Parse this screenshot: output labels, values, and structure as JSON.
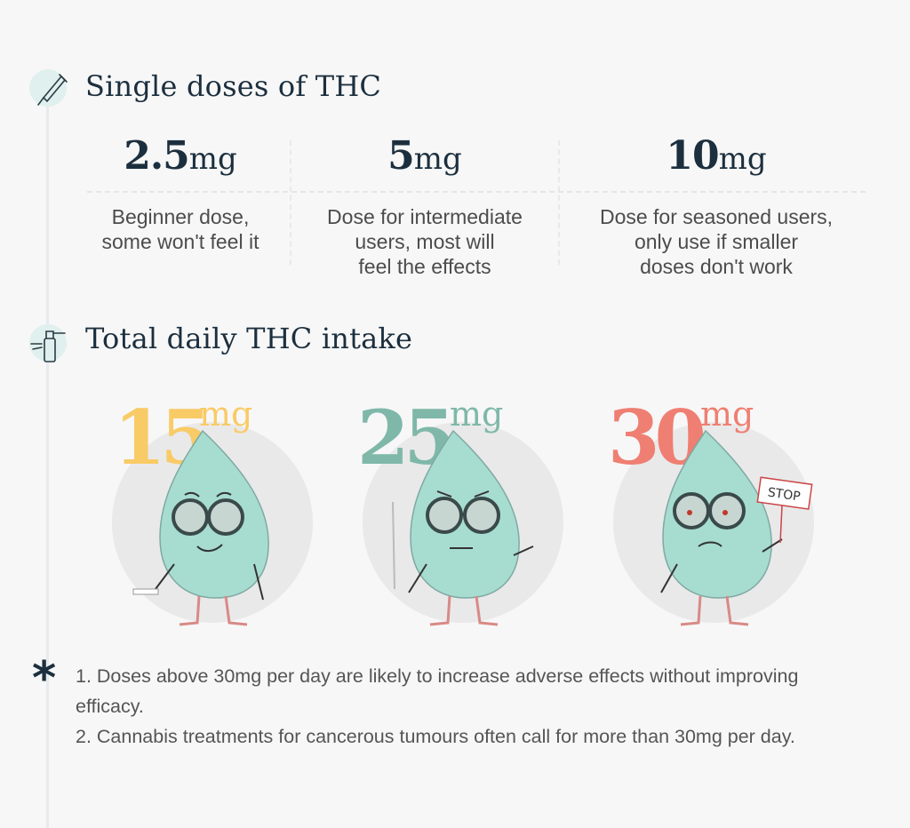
{
  "colors": {
    "heading": "#1c2f3e",
    "mint": "#a7dcd1",
    "yellow": "#f9cb66",
    "teal": "#7fb8a8",
    "coral": "#ef7f72",
    "circle_bg": "#e9e9ea"
  },
  "icons": {
    "single_doses": "dropper-icon",
    "daily_intake": "spray-bottle-icon",
    "notes": "asterisk-icon"
  },
  "single_doses": {
    "title": "Single doses of THC",
    "doses": [
      {
        "amount": "2.5",
        "unit": "mg",
        "desc_lines": [
          "Beginner dose,",
          "some won't feel it"
        ]
      },
      {
        "amount": "5",
        "unit": "mg",
        "desc_lines": [
          "Dose for intermediate",
          "users, most will",
          "feel the effects"
        ]
      },
      {
        "amount": "10",
        "unit": "mg",
        "desc_lines": [
          "Dose for seasoned users,",
          "only use if smaller",
          "doses don't work"
        ]
      }
    ]
  },
  "daily_intake": {
    "title": "Total daily THC intake",
    "items": [
      {
        "amount": "15",
        "unit": "mg",
        "color": "#f9cb66"
      },
      {
        "amount": "25",
        "unit": "mg",
        "color": "#7fb8a8"
      },
      {
        "amount": "30",
        "unit": "mg",
        "color": "#ef7f72",
        "sign_text": "STOP"
      }
    ]
  },
  "notes": {
    "marker": "*",
    "lines": [
      "1. Doses above 30mg per day are likely to increase adverse effects without improving efficacy.",
      "2. Cannabis treatments for cancerous tumours often call for more than 30mg per day."
    ]
  }
}
